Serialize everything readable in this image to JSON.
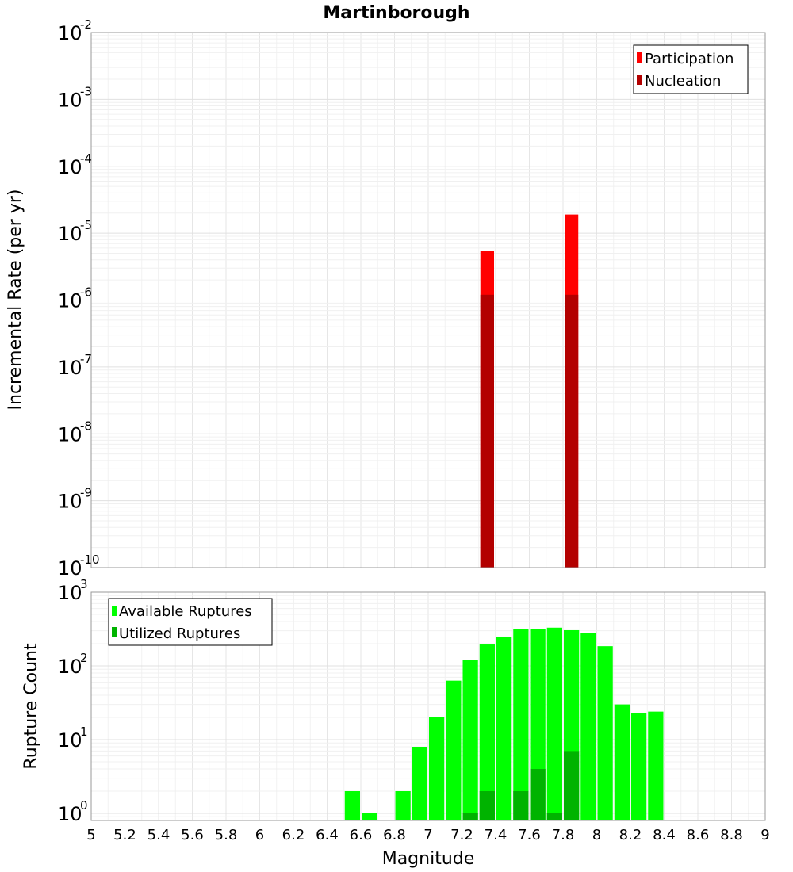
{
  "chart_data": [
    {
      "type": "bar",
      "title": "Martinborough",
      "ylabel": "Incremental Rate (per yr)",
      "yscale": "log",
      "ylim": [
        1e-10,
        0.01
      ],
      "y_tick_exponents": [
        -10,
        -9,
        -8,
        -7,
        -6,
        -5,
        -4,
        -3,
        -2
      ],
      "xlim": [
        5,
        9
      ],
      "grid": true,
      "legend_position": "top-right",
      "bin_width": 0.1,
      "series": [
        {
          "name": "Participation",
          "color": "#ff0000",
          "x": [
            7.35,
            7.85
          ],
          "values": [
            5.5e-06,
            1.9e-05
          ]
        },
        {
          "name": "Nucleation",
          "color": "#b30000",
          "x": [
            7.35,
            7.85
          ],
          "values": [
            1.2e-06,
            1.2e-06
          ]
        }
      ]
    },
    {
      "type": "bar",
      "xlabel": "Magnitude",
      "ylabel": "Rupture Count",
      "yscale": "log",
      "ylim": [
        0.8,
        1000
      ],
      "y_tick_exponents": [
        0,
        1,
        2,
        3
      ],
      "xlim": [
        5,
        9
      ],
      "x_ticks": [
        "5",
        "5.2",
        "5.4",
        "5.6",
        "5.8",
        "6",
        "6.2",
        "6.4",
        "6.6",
        "6.8",
        "7",
        "7.2",
        "7.4",
        "7.6",
        "7.8",
        "8",
        "8.2",
        "8.4",
        "8.6",
        "8.8",
        "9"
      ],
      "grid": true,
      "legend_position": "top-left",
      "bin_width": 0.1,
      "series": [
        {
          "name": "Available Ruptures",
          "color": "#00ff00",
          "x": [
            6.55,
            6.65,
            6.85,
            6.95,
            7.05,
            7.15,
            7.25,
            7.35,
            7.45,
            7.55,
            7.65,
            7.75,
            7.85,
            7.95,
            8.05,
            8.15,
            8.25,
            8.35
          ],
          "values": [
            2,
            1,
            2,
            8,
            20,
            63,
            120,
            195,
            250,
            320,
            315,
            330,
            305,
            280,
            185,
            30,
            23,
            24
          ]
        },
        {
          "name": "Utilized Ruptures",
          "color": "#00b300",
          "x": [
            7.25,
            7.35,
            7.55,
            7.65,
            7.75,
            7.85
          ],
          "values": [
            1,
            2,
            2,
            4,
            1,
            7
          ]
        }
      ]
    }
  ]
}
